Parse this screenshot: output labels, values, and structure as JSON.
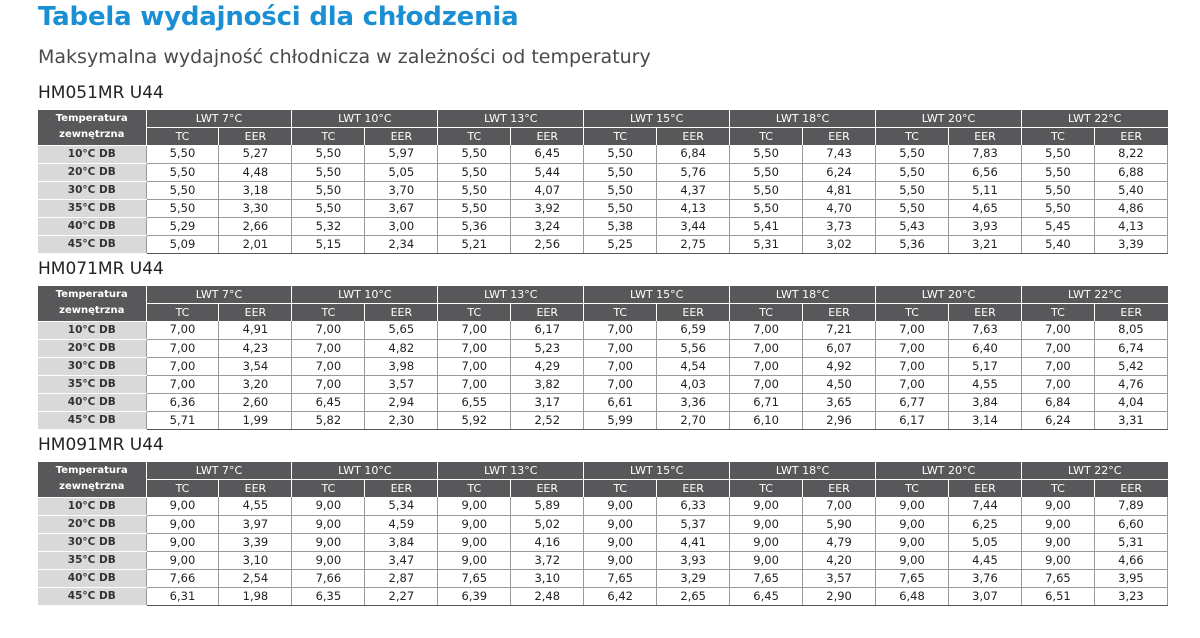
{
  "title": "Tabela wydajności dla chłodzenia",
  "subtitle": "Maksymalna wydajność chłodnicza w zależności od temperatury",
  "header": {
    "corner_line1": "Temperatura",
    "corner_line2": "zewnętrzna",
    "lwt": [
      "LWT 7°C",
      "LWT 10°C",
      "LWT 13°C",
      "LWT 15°C",
      "LWT 18°C",
      "LWT 20°C",
      "LWT 22°C"
    ],
    "tc": "TC",
    "eer": "EER"
  },
  "rows": [
    "10°C DB",
    "20°C DB",
    "30°C DB",
    "35°C DB",
    "40°C DB",
    "45°C DB"
  ],
  "tables": [
    {
      "model": "HM051MR U44",
      "data": [
        [
          "5,50",
          "5,27",
          "5,50",
          "5,97",
          "5,50",
          "6,45",
          "5,50",
          "6,84",
          "5,50",
          "7,43",
          "5,50",
          "7,83",
          "5,50",
          "8,22"
        ],
        [
          "5,50",
          "4,48",
          "5,50",
          "5,05",
          "5,50",
          "5,44",
          "5,50",
          "5,76",
          "5,50",
          "6,24",
          "5,50",
          "6,56",
          "5,50",
          "6,88"
        ],
        [
          "5,50",
          "3,18",
          "5,50",
          "3,70",
          "5,50",
          "4,07",
          "5,50",
          "4,37",
          "5,50",
          "4,81",
          "5,50",
          "5,11",
          "5,50",
          "5,40"
        ],
        [
          "5,50",
          "3,30",
          "5,50",
          "3,67",
          "5,50",
          "3,92",
          "5,50",
          "4,13",
          "5,50",
          "4,70",
          "5,50",
          "4,65",
          "5,50",
          "4,86"
        ],
        [
          "5,29",
          "2,66",
          "5,32",
          "3,00",
          "5,36",
          "3,24",
          "5,38",
          "3,44",
          "5,41",
          "3,73",
          "5,43",
          "3,93",
          "5,45",
          "4,13"
        ],
        [
          "5,09",
          "2,01",
          "5,15",
          "2,34",
          "5,21",
          "2,56",
          "5,25",
          "2,75",
          "5,31",
          "3,02",
          "5,36",
          "3,21",
          "5,40",
          "3,39"
        ]
      ]
    },
    {
      "model": "HM071MR U44",
      "data": [
        [
          "7,00",
          "4,91",
          "7,00",
          "5,65",
          "7,00",
          "6,17",
          "7,00",
          "6,59",
          "7,00",
          "7,21",
          "7,00",
          "7,63",
          "7,00",
          "8,05"
        ],
        [
          "7,00",
          "4,23",
          "7,00",
          "4,82",
          "7,00",
          "5,23",
          "7,00",
          "5,56",
          "7,00",
          "6,07",
          "7,00",
          "6,40",
          "7,00",
          "6,74"
        ],
        [
          "7,00",
          "3,54",
          "7,00",
          "3,98",
          "7,00",
          "4,29",
          "7,00",
          "4,54",
          "7,00",
          "4,92",
          "7,00",
          "5,17",
          "7,00",
          "5,42"
        ],
        [
          "7,00",
          "3,20",
          "7,00",
          "3,57",
          "7,00",
          "3,82",
          "7,00",
          "4,03",
          "7,00",
          "4,50",
          "7,00",
          "4,55",
          "7,00",
          "4,76"
        ],
        [
          "6,36",
          "2,60",
          "6,45",
          "2,94",
          "6,55",
          "3,17",
          "6,61",
          "3,36",
          "6,71",
          "3,65",
          "6,77",
          "3,84",
          "6,84",
          "4,04"
        ],
        [
          "5,71",
          "1,99",
          "5,82",
          "2,30",
          "5,92",
          "2,52",
          "5,99",
          "2,70",
          "6,10",
          "2,96",
          "6,17",
          "3,14",
          "6,24",
          "3,31"
        ]
      ]
    },
    {
      "model": "HM091MR U44",
      "data": [
        [
          "9,00",
          "4,55",
          "9,00",
          "5,34",
          "9,00",
          "5,89",
          "9,00",
          "6,33",
          "9,00",
          "7,00",
          "9,00",
          "7,44",
          "9,00",
          "7,89"
        ],
        [
          "9,00",
          "3,97",
          "9,00",
          "4,59",
          "9,00",
          "5,02",
          "9,00",
          "5,37",
          "9,00",
          "5,90",
          "9,00",
          "6,25",
          "9,00",
          "6,60"
        ],
        [
          "9,00",
          "3,39",
          "9,00",
          "3,84",
          "9,00",
          "4,16",
          "9,00",
          "4,41",
          "9,00",
          "4,79",
          "9,00",
          "5,05",
          "9,00",
          "5,31"
        ],
        [
          "9,00",
          "3,10",
          "9,00",
          "3,47",
          "9,00",
          "3,72",
          "9,00",
          "3,93",
          "9,00",
          "4,20",
          "9,00",
          "4,45",
          "9,00",
          "4,66"
        ],
        [
          "7,66",
          "2,54",
          "7,66",
          "2,87",
          "7,65",
          "3,10",
          "7,65",
          "3,29",
          "7,65",
          "3,57",
          "7,65",
          "3,76",
          "7,65",
          "3,95"
        ],
        [
          "6,31",
          "1,98",
          "6,35",
          "2,27",
          "6,39",
          "2,48",
          "6,42",
          "2,65",
          "6,45",
          "2,90",
          "6,48",
          "3,07",
          "6,51",
          "3,23"
        ]
      ]
    }
  ]
}
